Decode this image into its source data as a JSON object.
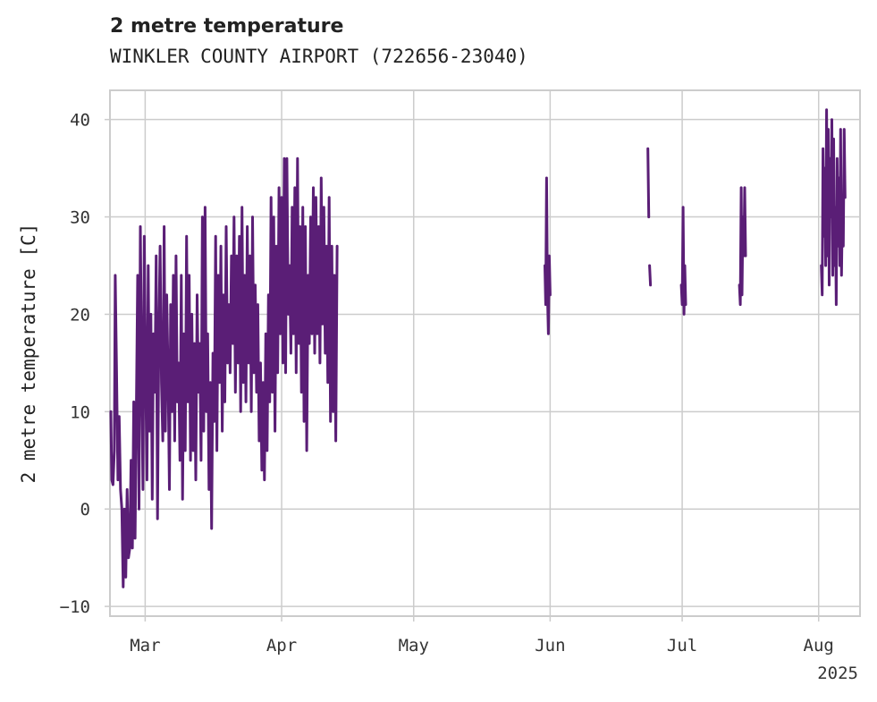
{
  "chart_data": {
    "type": "line",
    "title": "2 metre temperature",
    "subtitle": "WINKLER COUNTY AIRPORT (722656-23040)",
    "ylabel": "2 metre temperature [C]",
    "xlabel": "",
    "ylim": [
      -11,
      43
    ],
    "xlim_days": [
      -8.0,
      162.4
    ],
    "yticks": [
      -10,
      0,
      10,
      20,
      30,
      40
    ],
    "xticks": [
      {
        "label": "Mar",
        "day": 0
      },
      {
        "label": "Apr",
        "day": 31
      },
      {
        "label": "May",
        "day": 61
      },
      {
        "label": "Jun",
        "day": 92
      },
      {
        "label": "Jul",
        "day": 122
      },
      {
        "label": "Aug",
        "day": 153
      }
    ],
    "year_label": "2025",
    "grid": true,
    "line_color": "#5a1e76",
    "x_unit": "days since 2025-03-01",
    "series": [
      {
        "name": "2 metre temperature",
        "segments": [
          [
            [
              -7.8,
              10
            ],
            [
              -7.6,
              3
            ],
            [
              -7.3,
              2.5
            ],
            [
              -7.0,
              6
            ],
            [
              -6.8,
              24
            ],
            [
              -6.5,
              14
            ],
            [
              -6.2,
              3
            ],
            [
              -5.9,
              9.5
            ],
            [
              -5.6,
              2
            ],
            [
              -5.3,
              0
            ],
            [
              -5.0,
              -8
            ],
            [
              -4.7,
              0
            ],
            [
              -4.4,
              -7
            ],
            [
              -4.1,
              2
            ],
            [
              -3.8,
              -5
            ],
            [
              -3.5,
              -4
            ],
            [
              -3.2,
              5
            ],
            [
              -2.9,
              -4
            ],
            [
              -2.6,
              11
            ],
            [
              -2.3,
              -3
            ],
            [
              -2.0,
              10
            ],
            [
              -1.7,
              24
            ],
            [
              -1.4,
              0
            ],
            [
              -1.1,
              29
            ],
            [
              -0.8,
              14
            ],
            [
              -0.5,
              2
            ],
            [
              -0.2,
              28
            ],
            [
              0.1,
              14
            ],
            [
              0.4,
              3
            ],
            [
              0.7,
              25
            ],
            [
              1.0,
              8
            ],
            [
              1.3,
              20
            ],
            [
              1.6,
              1
            ],
            [
              1.9,
              18
            ],
            [
              2.2,
              12
            ],
            [
              2.5,
              26
            ],
            [
              2.8,
              -1
            ],
            [
              3.1,
              18
            ],
            [
              3.4,
              27
            ],
            [
              3.7,
              13
            ],
            [
              4.0,
              7
            ],
            [
              4.3,
              29
            ],
            [
              4.6,
              8
            ],
            [
              4.9,
              22
            ],
            [
              5.2,
              14
            ],
            [
              5.5,
              2
            ],
            [
              5.8,
              21
            ],
            [
              6.1,
              10
            ],
            [
              6.4,
              24
            ],
            [
              6.7,
              7
            ],
            [
              7.0,
              26
            ],
            [
              7.3,
              11
            ],
            [
              7.6,
              15
            ],
            [
              7.9,
              5
            ],
            [
              8.2,
              24
            ],
            [
              8.5,
              1
            ],
            [
              8.8,
              18
            ],
            [
              9.1,
              6
            ],
            [
              9.4,
              28
            ],
            [
              9.7,
              11
            ],
            [
              10.0,
              24
            ],
            [
              10.3,
              5
            ],
            [
              10.6,
              20
            ],
            [
              10.9,
              6
            ],
            [
              11.2,
              17
            ],
            [
              11.5,
              3
            ],
            [
              11.8,
              22
            ],
            [
              12.1,
              12
            ],
            [
              12.4,
              17
            ],
            [
              12.7,
              5
            ],
            [
              13.0,
              30
            ],
            [
              13.3,
              8
            ],
            [
              13.6,
              31
            ],
            [
              13.9,
              10
            ],
            [
              14.2,
              18
            ],
            [
              14.5,
              2
            ],
            [
              14.8,
              13
            ],
            [
              15.1,
              -2
            ],
            [
              15.4,
              16
            ],
            [
              15.7,
              9
            ],
            [
              16.0,
              28
            ],
            [
              16.3,
              6
            ],
            [
              16.6,
              24
            ],
            [
              16.9,
              13
            ],
            [
              17.2,
              27
            ],
            [
              17.5,
              8
            ],
            [
              17.8,
              22
            ],
            [
              18.1,
              11
            ],
            [
              18.4,
              29
            ],
            [
              18.7,
              15
            ],
            [
              19.0,
              21
            ],
            [
              19.3,
              14
            ],
            [
              19.6,
              26
            ],
            [
              19.9,
              17
            ],
            [
              20.2,
              30
            ],
            [
              20.5,
              12
            ],
            [
              20.8,
              26
            ],
            [
              21.1,
              15
            ],
            [
              21.4,
              28
            ],
            [
              21.7,
              10
            ],
            [
              22.0,
              31
            ],
            [
              22.3,
              13
            ],
            [
              22.6,
              24
            ],
            [
              22.9,
              11
            ],
            [
              23.2,
              29
            ],
            [
              23.5,
              15
            ],
            [
              23.8,
              26
            ],
            [
              24.1,
              10
            ],
            [
              24.4,
              30
            ],
            [
              24.7,
              14
            ],
            [
              25.0,
              23
            ],
            [
              25.3,
              12
            ],
            [
              25.6,
              21
            ],
            [
              25.9,
              7
            ],
            [
              26.2,
              15
            ],
            [
              26.5,
              4
            ],
            [
              26.8,
              13
            ],
            [
              27.1,
              3
            ],
            [
              27.4,
              18
            ],
            [
              27.7,
              6
            ],
            [
              28.0,
              22
            ],
            [
              28.3,
              11
            ],
            [
              28.6,
              32
            ],
            [
              28.9,
              12
            ],
            [
              29.2,
              30
            ],
            [
              29.5,
              8
            ],
            [
              29.8,
              27
            ],
            [
              30.1,
              14
            ],
            [
              30.4,
              33
            ],
            [
              30.7,
              18
            ],
            [
              31.0,
              32
            ],
            [
              31.3,
              15
            ],
            [
              31.6,
              36
            ],
            [
              31.9,
              14
            ],
            [
              32.2,
              36
            ],
            [
              32.5,
              20
            ],
            [
              32.8,
              25
            ],
            [
              33.1,
              16
            ],
            [
              33.4,
              31
            ],
            [
              33.7,
              18
            ],
            [
              34.0,
              33
            ],
            [
              34.3,
              14
            ],
            [
              34.6,
              36
            ],
            [
              34.9,
              17
            ],
            [
              35.2,
              29
            ],
            [
              35.5,
              12
            ],
            [
              35.8,
              31
            ],
            [
              36.1,
              9
            ],
            [
              36.4,
              29
            ],
            [
              36.7,
              6
            ],
            [
              37.0,
              24
            ],
            [
              37.3,
              17
            ],
            [
              37.6,
              30
            ],
            [
              37.9,
              18
            ],
            [
              38.2,
              33
            ],
            [
              38.5,
              16
            ],
            [
              38.8,
              32
            ],
            [
              39.1,
              18
            ],
            [
              39.4,
              29
            ],
            [
              39.7,
              15
            ],
            [
              40.0,
              34
            ],
            [
              40.3,
              19
            ],
            [
              40.6,
              31
            ],
            [
              40.9,
              16
            ],
            [
              41.2,
              27
            ],
            [
              41.5,
              13
            ],
            [
              41.8,
              32
            ],
            [
              42.1,
              9
            ],
            [
              42.4,
              27
            ],
            [
              42.7,
              10
            ],
            [
              43.0,
              24
            ],
            [
              43.3,
              7
            ],
            [
              43.6,
              27
            ]
          ],
          [
            [
              90.8,
              25
            ],
            [
              91.0,
              21
            ],
            [
              91.2,
              34
            ],
            [
              91.4,
              22
            ],
            [
              91.6,
              18
            ],
            [
              91.8,
              26
            ],
            [
              92.0,
              22
            ]
          ],
          [
            [
              114.2,
              37
            ],
            [
              114.4,
              30
            ]
          ],
          [
            [
              114.6,
              25
            ],
            [
              114.8,
              23
            ]
          ],
          [
            [
              121.8,
              23
            ],
            [
              122.0,
              21
            ],
            [
              122.2,
              31
            ],
            [
              122.4,
              20
            ],
            [
              122.6,
              25
            ],
            [
              122.8,
              21
            ]
          ],
          [
            [
              135.0,
              23
            ],
            [
              135.2,
              21
            ],
            [
              135.4,
              33
            ],
            [
              135.6,
              22
            ],
            [
              135.8,
              30
            ],
            [
              136.0,
              26
            ],
            [
              136.2,
              33
            ],
            [
              136.4,
              26
            ]
          ],
          [
            [
              153.6,
              25
            ],
            [
              153.8,
              22
            ],
            [
              154.0,
              37
            ],
            [
              154.2,
              28
            ],
            [
              154.4,
              35
            ],
            [
              154.6,
              25
            ],
            [
              154.8,
              41
            ],
            [
              155.0,
              26
            ],
            [
              155.2,
              39
            ],
            [
              155.4,
              23
            ],
            [
              155.6,
              36
            ],
            [
              155.8,
              30
            ],
            [
              156.0,
              40
            ],
            [
              156.2,
              24
            ],
            [
              156.4,
              38
            ],
            [
              156.6,
              25
            ],
            [
              156.8,
              31
            ],
            [
              157.0,
              21
            ],
            [
              157.2,
              36
            ],
            [
              157.4,
              27
            ],
            [
              157.6,
              34
            ],
            [
              157.8,
              25
            ],
            [
              158.0,
              39
            ],
            [
              158.2,
              24
            ],
            [
              158.4,
              31
            ],
            [
              158.6,
              27
            ],
            [
              158.8,
              39
            ],
            [
              159.0,
              32
            ]
          ]
        ]
      }
    ]
  }
}
